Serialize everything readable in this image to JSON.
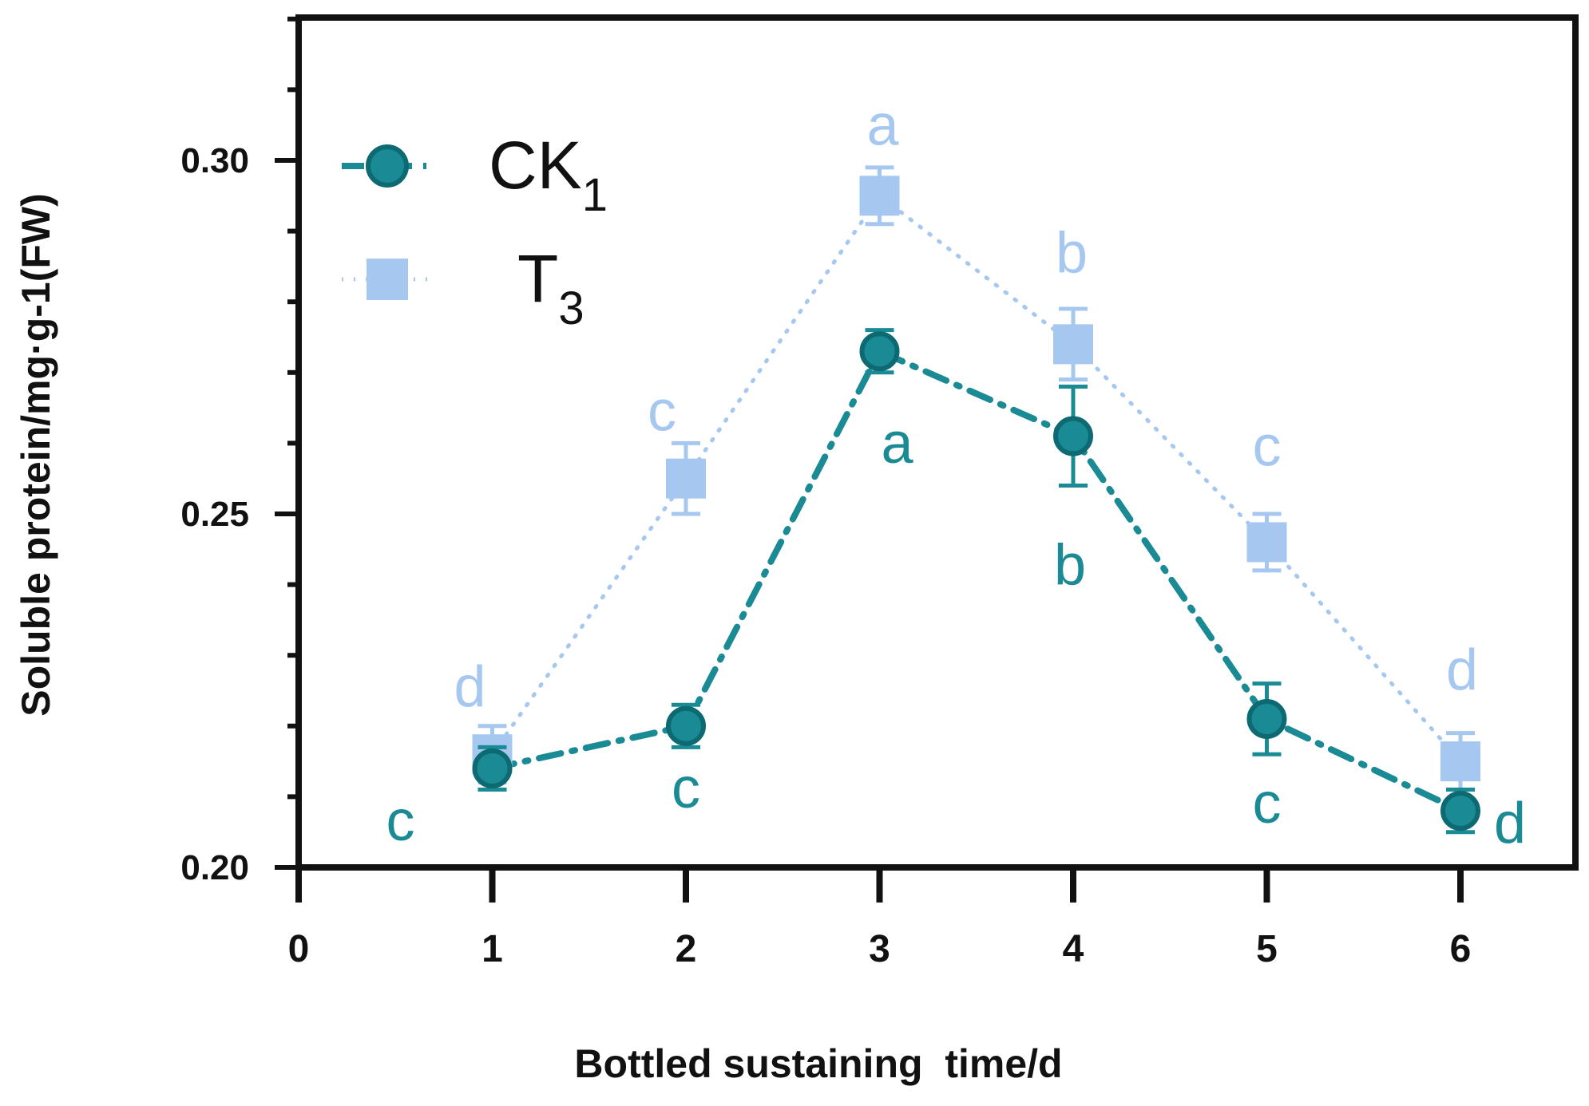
{
  "chart_data": {
    "type": "line",
    "title": "",
    "xlabel": "Bottled sustaining  time/d",
    "ylabel": "Soluble protein/mg·g-1(FW)",
    "xlim": [
      0,
      6.5
    ],
    "ylim": [
      0.2,
      0.32
    ],
    "x_ticks": [
      0,
      1,
      2,
      3,
      4,
      5,
      6
    ],
    "x_tick_labels": [
      "0",
      "1",
      "2",
      "3",
      "4",
      "5",
      "6"
    ],
    "y_ticks": [
      0.2,
      0.25,
      0.3
    ],
    "y_tick_labels": [
      "0.20",
      "0.25",
      "0.30"
    ],
    "grid": false,
    "legend_position": "top-left",
    "x": [
      1,
      2,
      3,
      4,
      5,
      6
    ],
    "series": [
      {
        "name_main": "CK",
        "name_sub": "1",
        "marker": "circle",
        "line_style": "dash-dot",
        "color": "#1a8a94",
        "values": [
          0.214,
          0.22,
          0.273,
          0.261,
          0.221,
          0.208
        ],
        "errors": [
          0.003,
          0.003,
          0.003,
          0.007,
          0.005,
          0.003
        ],
        "sig_labels": [
          "c",
          "c",
          "a",
          "b",
          "c",
          "d"
        ]
      },
      {
        "name_main": "T",
        "name_sub": "3",
        "marker": "square",
        "line_style": "dotted",
        "color": "#a6c8f0",
        "values": [
          0.216,
          0.255,
          0.295,
          0.274,
          0.246,
          0.215
        ],
        "errors": [
          0.004,
          0.005,
          0.004,
          0.005,
          0.004,
          0.004
        ],
        "sig_labels": [
          "d",
          "c",
          "a",
          "b",
          "c",
          "d"
        ]
      }
    ]
  }
}
